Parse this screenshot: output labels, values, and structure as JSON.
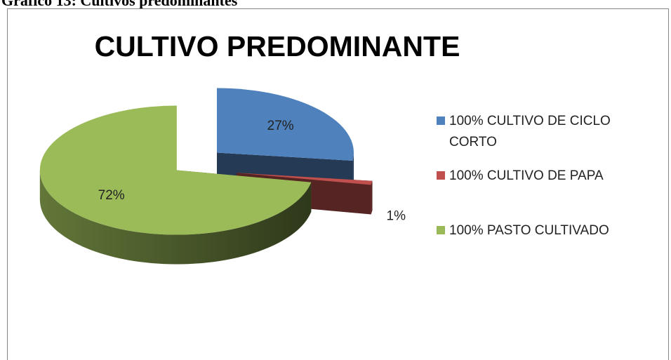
{
  "caption": "Gráfico 13: Cultivos predominantes",
  "chart_data": {
    "type": "pie3d",
    "title": "CULTIVO PREDOMINANTE",
    "categories": [
      "100% CULTIVO DE CICLO CORTO",
      "100% CULTIVO DE PAPA",
      "100% PASTO CULTIVADO"
    ],
    "values": [
      27,
      1,
      72
    ],
    "value_labels": [
      "27%",
      "1%",
      "72%"
    ],
    "colors": [
      "#4f81bd",
      "#c0504d",
      "#9bbb59"
    ],
    "legend": "right"
  }
}
